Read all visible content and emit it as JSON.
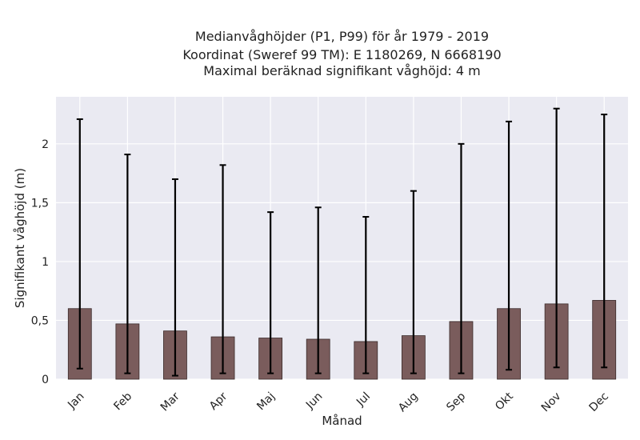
{
  "chart_data": {
    "type": "bar",
    "title_lines": [
      "Medianvåghöjder (P1, P99) för år 1979 - 2019",
      "Koordinat (Sweref 99 TM): E 1180269, N 6668190",
      "Maximal beräknad signifikant våghöjd: 4 m"
    ],
    "xlabel": "Månad",
    "ylabel": "Signifikant våghöjd (m)",
    "categories": [
      "Jan",
      "Feb",
      "Mar",
      "Apr",
      "Maj",
      "Jun",
      "Jul",
      "Aug",
      "Sep",
      "Okt",
      "Nov",
      "Dec"
    ],
    "values": [
      0.6,
      0.47,
      0.41,
      0.36,
      0.35,
      0.34,
      0.32,
      0.37,
      0.49,
      0.6,
      0.64,
      0.67
    ],
    "error_low": [
      0.09,
      0.05,
      0.03,
      0.05,
      0.05,
      0.05,
      0.05,
      0.05,
      0.05,
      0.08,
      0.1,
      0.1
    ],
    "error_high": [
      2.21,
      1.91,
      1.7,
      1.82,
      1.42,
      1.46,
      1.38,
      1.6,
      2.0,
      2.19,
      2.3,
      2.25
    ],
    "yticks": [
      0,
      0.5,
      1,
      1.5,
      2
    ],
    "ytick_labels": [
      "0",
      "0,5",
      "1",
      "1,5",
      "2"
    ],
    "ylim": [
      0,
      2.4
    ],
    "grid": true,
    "colors": {
      "bar": "#7a5c5c",
      "bar_edge": "#3a2a2a",
      "error_bar": "#000000",
      "plot_background": "#eaeaf2",
      "grid": "#ffffff"
    }
  }
}
